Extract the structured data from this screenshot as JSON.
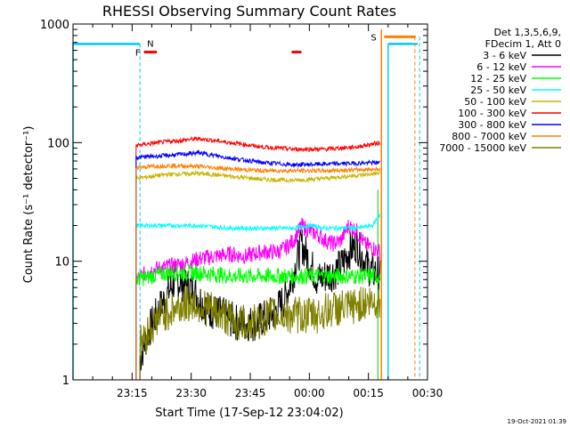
{
  "chart_data": {
    "type": "line",
    "title": "RHESSI Observing Summary Count Rates",
    "xlabel": "Start Time (17-Sep-12 23:04:02)",
    "ylabel": "Count Rate (s⁻¹ detector⁻¹)",
    "x_range_minutes": [
      -4,
      86
    ],
    "x_ticks": [
      {
        "label": "23:15",
        "minutes": 11
      },
      {
        "label": "23:30",
        "minutes": 26
      },
      {
        "label": "23:45",
        "minutes": 41
      },
      {
        "label": "00:00",
        "minutes": 56
      },
      {
        "label": "00:15",
        "minutes": 71
      },
      {
        "label": "00:30",
        "minutes": 86
      }
    ],
    "y_scale": "log",
    "ylim": [
      1,
      1000
    ],
    "y_ticks": [
      {
        "label": "1",
        "value": 1
      },
      {
        "label": "10",
        "value": 10
      },
      {
        "label": "100",
        "value": 100
      },
      {
        "label": "1000",
        "value": 1000
      }
    ],
    "legend_header": [
      "Det 1,3,5,6,9,",
      "FDecim 1, Att 0"
    ],
    "data_interval_minutes": [
      12,
      74
    ],
    "series": [
      {
        "name": "3 - 6 keV",
        "color": "#000000",
        "x": [
          13,
          15,
          18,
          22,
          26,
          30,
          34,
          38,
          42,
          46,
          48,
          50,
          52,
          54,
          56,
          58,
          60,
          62,
          64,
          66,
          68,
          70,
          72,
          74
        ],
        "y": [
          1.5,
          2.5,
          4,
          7,
          6,
          4,
          3.5,
          3,
          3,
          3.5,
          4,
          5,
          8,
          14,
          10,
          7,
          7.5,
          8,
          9,
          12,
          14,
          10,
          8,
          8
        ]
      },
      {
        "name": "6 - 12 keV",
        "color": "#ff00ff",
        "x": [
          12,
          16,
          20,
          24,
          28,
          32,
          36,
          40,
          44,
          48,
          50,
          52,
          54,
          56,
          58,
          60,
          62,
          64,
          66,
          68,
          70,
          72,
          74
        ],
        "y": [
          7,
          8.5,
          9,
          9.5,
          10.5,
          11,
          11.5,
          11,
          12,
          12,
          13,
          15,
          20,
          18,
          17,
          15,
          14,
          15,
          20,
          18,
          14,
          13,
          12
        ]
      },
      {
        "name": "12 - 25 keV",
        "color": "#00ff00",
        "x": [
          12,
          20,
          28,
          36,
          44,
          52,
          60,
          68,
          74
        ],
        "y": [
          7,
          8,
          8,
          7.5,
          7.5,
          7.5,
          7.5,
          7.5,
          7.5
        ]
      },
      {
        "name": "25 - 50 keV",
        "color": "#00ffff",
        "x": [
          12,
          20,
          28,
          36,
          44,
          52,
          56,
          60,
          64,
          68,
          72,
          74
        ],
        "y": [
          20,
          20,
          20,
          19,
          19,
          19,
          20,
          19,
          19,
          19,
          20,
          25
        ]
      },
      {
        "name": "50 - 100 keV",
        "color": "#c8b400",
        "x": [
          12,
          20,
          28,
          36,
          44,
          52,
          60,
          68,
          74
        ],
        "y": [
          50,
          54,
          55,
          52,
          49,
          48,
          50,
          53,
          55
        ]
      },
      {
        "name": "100 - 300 keV",
        "color": "#ff0000",
        "x": [
          12,
          20,
          28,
          36,
          44,
          52,
          60,
          68,
          74
        ],
        "y": [
          95,
          102,
          108,
          100,
          92,
          88,
          88,
          92,
          100
        ]
      },
      {
        "name": "300 - 800 keV",
        "color": "#0000ff",
        "x": [
          12,
          20,
          28,
          36,
          44,
          52,
          60,
          68,
          74
        ],
        "y": [
          75,
          78,
          82,
          74,
          68,
          65,
          66,
          67,
          68
        ]
      },
      {
        "name": "800 - 7000 keV",
        "color": "#ff8000",
        "x": [
          12,
          20,
          28,
          36,
          44,
          52,
          60,
          68,
          74
        ],
        "y": [
          62,
          64,
          63,
          60,
          58,
          58,
          58,
          59,
          60
        ]
      },
      {
        "name": "7000 - 15000 keV",
        "color": "#808000",
        "x": [
          13,
          18,
          22,
          26,
          30,
          34,
          38,
          42,
          46,
          50,
          54,
          58,
          62,
          66,
          70,
          74
        ],
        "y": [
          2,
          3.5,
          4,
          4.5,
          4,
          3.5,
          3,
          3,
          3.5,
          3.5,
          3.5,
          3.5,
          4,
          4,
          4.5,
          4.5
        ]
      }
    ],
    "annotations": [
      {
        "label": "N",
        "color": "#00c8ff"
      },
      {
        "label": "F",
        "color": "#ff0000"
      },
      {
        "label": "S",
        "color": "#ff8000"
      }
    ],
    "footer": "19-Oct-2021 01:39"
  }
}
